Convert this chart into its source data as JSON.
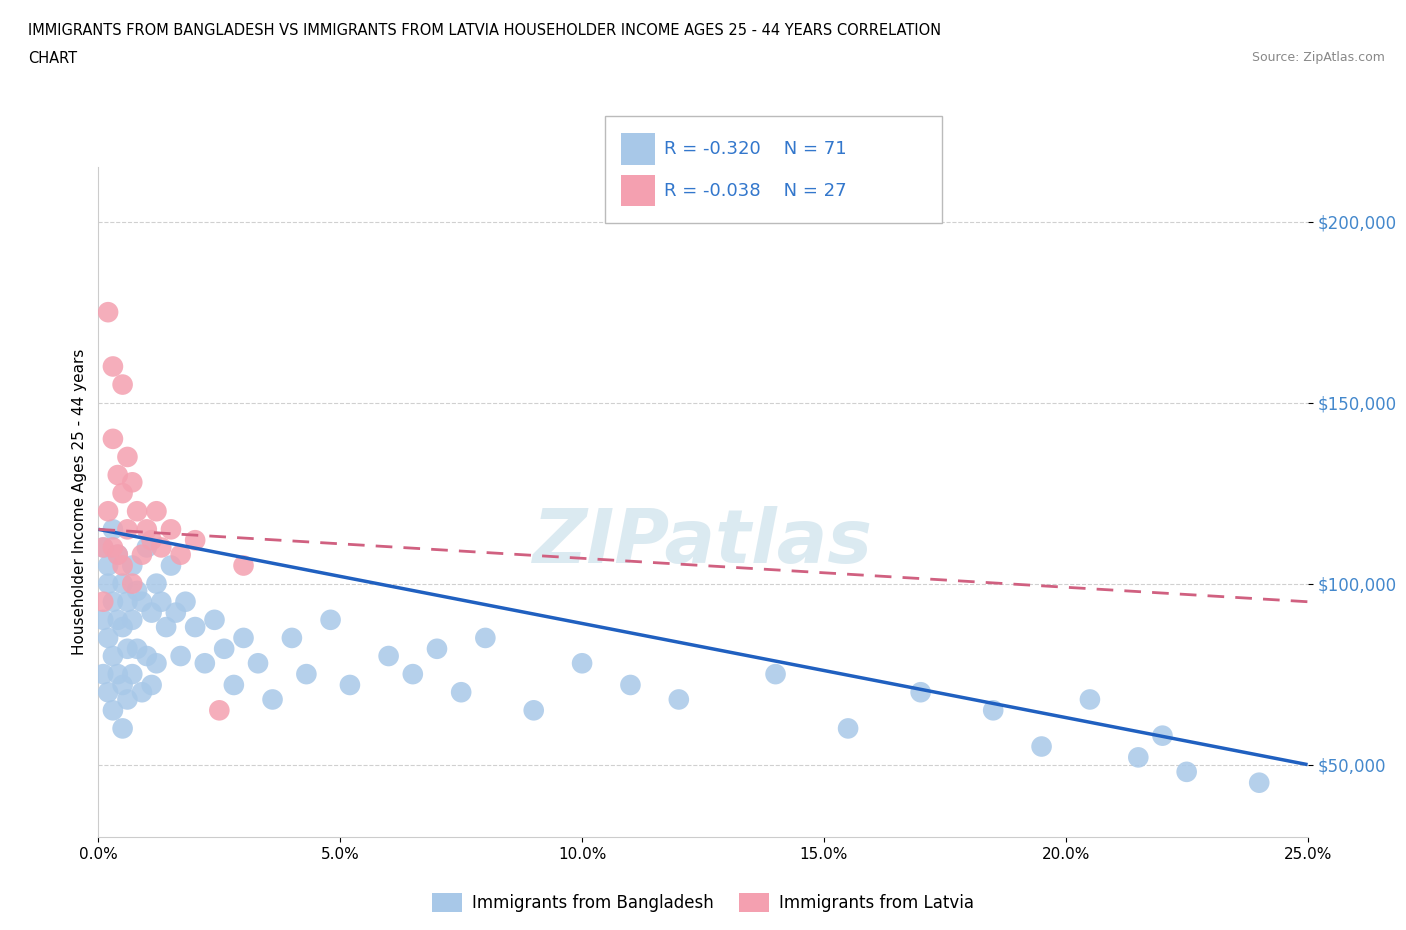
{
  "title_line1": "IMMIGRANTS FROM BANGLADESH VS IMMIGRANTS FROM LATVIA HOUSEHOLDER INCOME AGES 25 - 44 YEARS CORRELATION",
  "title_line2": "CHART",
  "source_text": "Source: ZipAtlas.com",
  "ylabel": "Householder Income Ages 25 - 44 years",
  "xlim": [
    0.0,
    0.25
  ],
  "ylim": [
    30000,
    215000
  ],
  "xtick_labels": [
    "0.0%",
    "5.0%",
    "10.0%",
    "15.0%",
    "20.0%",
    "25.0%"
  ],
  "xtick_values": [
    0.0,
    0.05,
    0.1,
    0.15,
    0.2,
    0.25
  ],
  "ytick_values": [
    50000,
    100000,
    150000,
    200000
  ],
  "ytick_labels": [
    "$50,000",
    "$100,000",
    "$150,000",
    "$200,000"
  ],
  "R_bangladesh": -0.32,
  "N_bangladesh": 71,
  "R_latvia": -0.038,
  "N_latvia": 27,
  "legend_label1": "Immigrants from Bangladesh",
  "legend_label2": "Immigrants from Latvia",
  "color_bangladesh": "#a8c8e8",
  "color_latvia": "#f4a0b0",
  "color_trendline_bangladesh": "#2060c0",
  "color_trendline_latvia": "#d06080",
  "watermark": "ZIPatlas",
  "bg_color": "#ffffff",
  "grid_color": "#d0d0d0",
  "bd_trendline_x": [
    0.0,
    0.25
  ],
  "bd_trendline_y": [
    115000,
    50000
  ],
  "lv_trendline_x": [
    0.0,
    0.25
  ],
  "lv_trendline_y": [
    115000,
    95000
  ],
  "bangladesh_x": [
    0.001,
    0.001,
    0.001,
    0.002,
    0.002,
    0.002,
    0.002,
    0.003,
    0.003,
    0.003,
    0.003,
    0.004,
    0.004,
    0.004,
    0.005,
    0.005,
    0.005,
    0.005,
    0.006,
    0.006,
    0.006,
    0.007,
    0.007,
    0.007,
    0.008,
    0.008,
    0.009,
    0.009,
    0.01,
    0.01,
    0.011,
    0.011,
    0.012,
    0.012,
    0.013,
    0.014,
    0.015,
    0.016,
    0.017,
    0.018,
    0.02,
    0.022,
    0.024,
    0.026,
    0.028,
    0.03,
    0.033,
    0.036,
    0.04,
    0.043,
    0.048,
    0.052,
    0.06,
    0.065,
    0.07,
    0.075,
    0.08,
    0.09,
    0.1,
    0.11,
    0.12,
    0.14,
    0.155,
    0.17,
    0.185,
    0.195,
    0.205,
    0.215,
    0.22,
    0.225,
    0.24
  ],
  "bangladesh_y": [
    110000,
    90000,
    75000,
    100000,
    85000,
    105000,
    70000,
    95000,
    80000,
    115000,
    65000,
    90000,
    75000,
    108000,
    100000,
    88000,
    72000,
    60000,
    95000,
    82000,
    68000,
    105000,
    90000,
    75000,
    98000,
    82000,
    95000,
    70000,
    110000,
    80000,
    92000,
    72000,
    100000,
    78000,
    95000,
    88000,
    105000,
    92000,
    80000,
    95000,
    88000,
    78000,
    90000,
    82000,
    72000,
    85000,
    78000,
    68000,
    85000,
    75000,
    90000,
    72000,
    80000,
    75000,
    82000,
    70000,
    85000,
    65000,
    78000,
    72000,
    68000,
    75000,
    60000,
    70000,
    65000,
    55000,
    68000,
    52000,
    58000,
    48000,
    45000
  ],
  "latvia_x": [
    0.001,
    0.001,
    0.002,
    0.002,
    0.003,
    0.003,
    0.003,
    0.004,
    0.004,
    0.005,
    0.005,
    0.005,
    0.006,
    0.006,
    0.007,
    0.007,
    0.008,
    0.009,
    0.01,
    0.011,
    0.012,
    0.013,
    0.015,
    0.017,
    0.02,
    0.025,
    0.03
  ],
  "latvia_y": [
    110000,
    95000,
    175000,
    120000,
    160000,
    140000,
    110000,
    130000,
    108000,
    155000,
    125000,
    105000,
    135000,
    115000,
    128000,
    100000,
    120000,
    108000,
    115000,
    112000,
    120000,
    110000,
    115000,
    108000,
    112000,
    65000,
    105000
  ]
}
